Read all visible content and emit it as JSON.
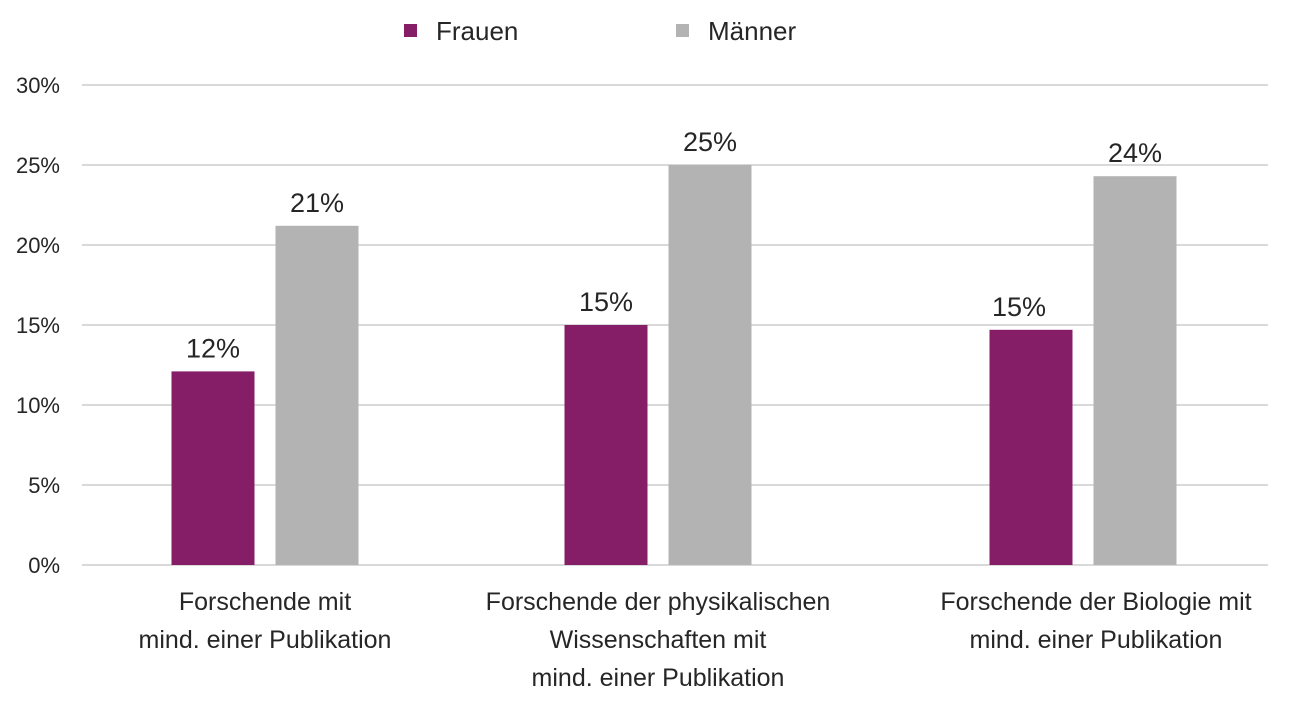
{
  "chart_data": {
    "type": "bar",
    "title": "",
    "xlabel": "",
    "ylabel": "",
    "ylim": [
      0,
      30
    ],
    "yticks": [
      0,
      5,
      10,
      15,
      20,
      25,
      30
    ],
    "ytick_labels": [
      "0%",
      "5%",
      "10%",
      "15%",
      "20%",
      "25%",
      "30%"
    ],
    "grid": true,
    "legend_position": "top-center",
    "categories": [
      [
        "Forschende mit",
        "mind. einer Publikation"
      ],
      [
        "Forschende der physikalischen",
        "Wissenschaften mit",
        "mind. einer Publikation"
      ],
      [
        "Forschende der Biologie mit",
        "mind. einer Publikation"
      ]
    ],
    "series": [
      {
        "name": "Frauen",
        "color": "#851d67",
        "values": [
          12.1,
          15.0,
          14.7
        ],
        "labels": [
          "12%",
          "15%",
          "15%"
        ]
      },
      {
        "name": "Männer",
        "color": "#b3b3b3",
        "values": [
          21.2,
          25.0,
          24.3
        ],
        "labels": [
          "21%",
          "25%",
          "24%"
        ]
      }
    ]
  }
}
